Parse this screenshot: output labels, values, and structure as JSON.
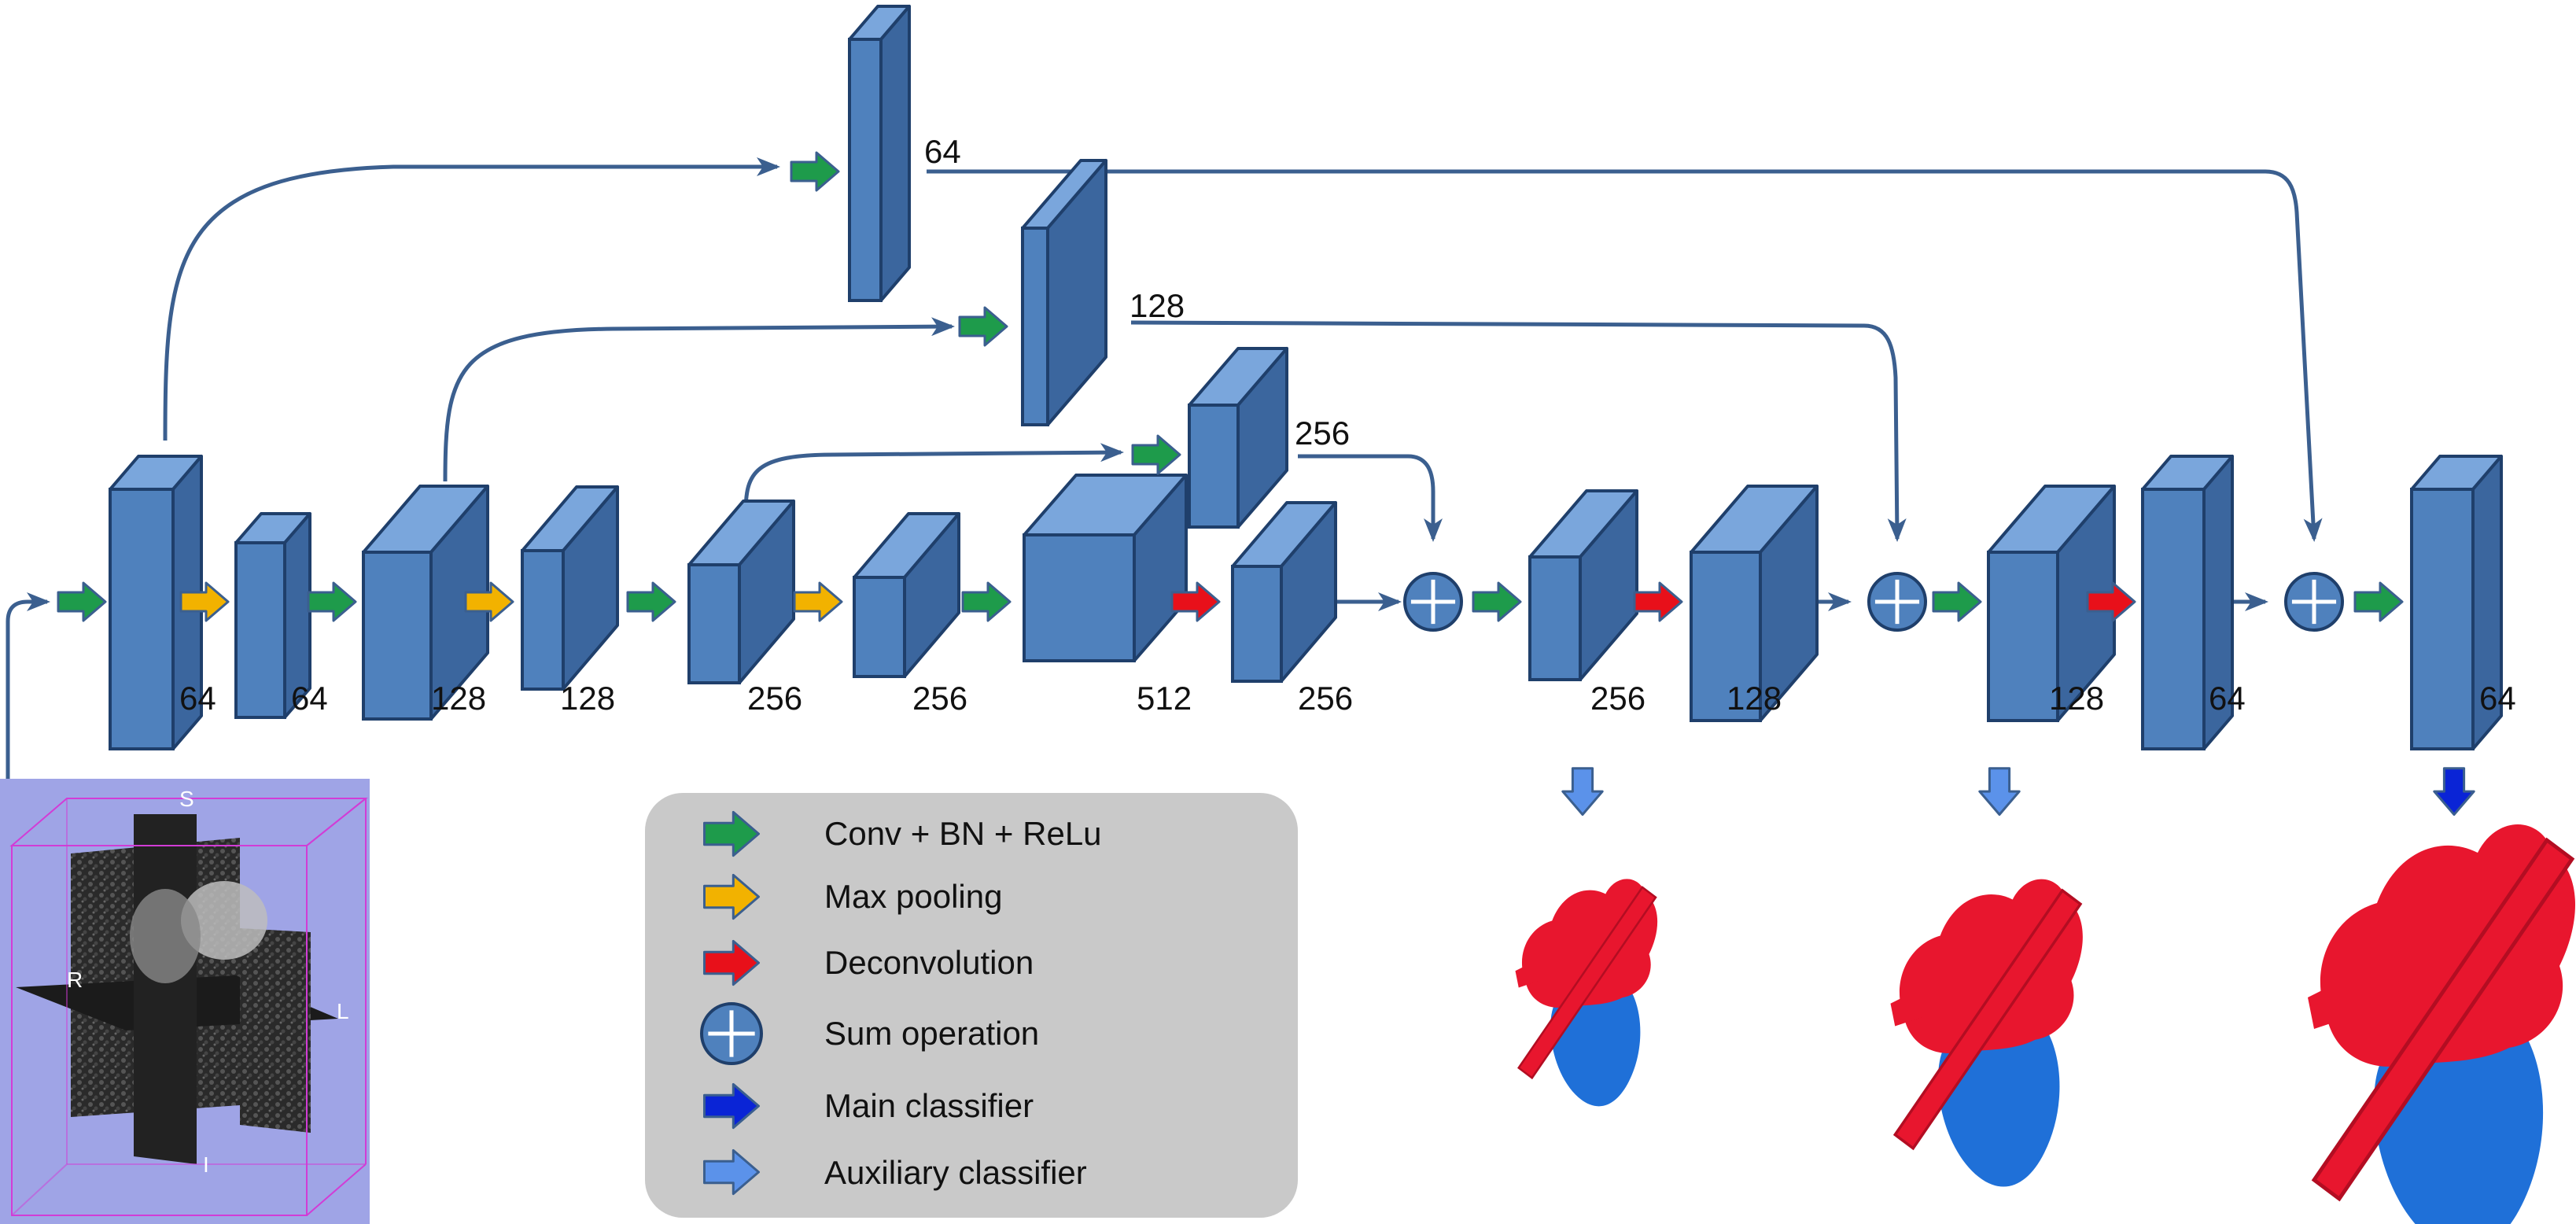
{
  "colors": {
    "block_front": "#4f81bd",
    "block_side": "#3b669e",
    "block_top": "#7aa6dc",
    "block_edge": "#1f3f6b",
    "line": "#3b5f8f",
    "conv": "#1e9b4b",
    "pool": "#f2b200",
    "deconv": "#e8101a",
    "main_cls": "#0a24d6",
    "aux_cls": "#5b92ea",
    "sum": "#4f81bd",
    "legend_bg": "#c9c9c9",
    "heart_red": "#e8162e",
    "heart_blue": "#1f70d8",
    "mri_bg": "#9fa4e6",
    "mri_box": "#d23cd6"
  },
  "blocks": [
    {
      "id": "enc1",
      "label": "64"
    },
    {
      "id": "enc2",
      "label": "64"
    },
    {
      "id": "enc3",
      "label": "128"
    },
    {
      "id": "enc4",
      "label": "128"
    },
    {
      "id": "enc5",
      "label": "256"
    },
    {
      "id": "enc6",
      "label": "256"
    },
    {
      "id": "bottleneck",
      "label": "512"
    },
    {
      "id": "up1",
      "label": "256"
    },
    {
      "id": "dec1",
      "label": "256"
    },
    {
      "id": "up2",
      "label": "128"
    },
    {
      "id": "dec2",
      "label": "128"
    },
    {
      "id": "up3",
      "label": "64"
    },
    {
      "id": "dec3",
      "label": "64"
    },
    {
      "id": "skip64",
      "label": "64"
    },
    {
      "id": "skip128",
      "label": "128"
    },
    {
      "id": "skip256",
      "label": "256"
    }
  ],
  "mri": {
    "label_top": "S",
    "label_left": "R",
    "label_right": "L",
    "label_bottom": "I"
  },
  "legend": [
    {
      "icon": "conv",
      "text": "Conv + BN + ReLu"
    },
    {
      "icon": "pool",
      "text": "Max pooling"
    },
    {
      "icon": "deconv",
      "text": "Deconvolution"
    },
    {
      "icon": "sum",
      "text": "Sum operation"
    },
    {
      "icon": "main",
      "text": "Main classifier"
    },
    {
      "icon": "aux",
      "text": "Auxiliary classifier"
    }
  ]
}
